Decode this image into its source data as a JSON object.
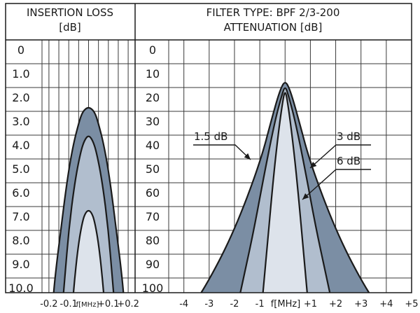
{
  "chart_data": [
    {
      "type": "area",
      "title": "INSERTION LOSS",
      "subtitle": "[dB]",
      "xlabel": "f[MHz]",
      "ylim": [
        0,
        10.5
      ],
      "y_ticks": [
        "0",
        "1.0",
        "2.0",
        "3.0",
        "4.0",
        "5.0",
        "6.0",
        "7.0",
        "8.0",
        "9.0",
        "10.0"
      ],
      "y_tick_values": [
        0,
        1,
        2,
        3,
        4,
        5,
        6,
        7,
        8,
        9,
        10
      ],
      "x_ticks": [
        "-0.2",
        "-0.1",
        "+0.1",
        "+0.2"
      ],
      "x_tick_values": [
        -0.2,
        -0.1,
        0.1,
        0.2
      ],
      "xlim": [
        -0.235,
        0.235
      ],
      "series": [
        {
          "fill": "#7b8ea4",
          "x": [
            -0.185,
            -0.17,
            -0.14,
            -0.11,
            -0.08,
            -0.05,
            -0.03,
            0.0,
            0.03,
            0.05,
            0.08,
            0.11,
            0.14,
            0.17,
            0.185
          ],
          "y": [
            10.5,
            9.0,
            7.0,
            5.0,
            3.5,
            2.5,
            2.0,
            1.8,
            2.0,
            2.5,
            3.5,
            5.0,
            7.0,
            9.0,
            10.5
          ]
        },
        {
          "fill": "#b1bece",
          "x": [
            -0.135,
            -0.12,
            -0.1,
            -0.07,
            -0.04,
            -0.02,
            0.0,
            0.02,
            0.04,
            0.07,
            0.1,
            0.12,
            0.135
          ],
          "y": [
            10.5,
            9.0,
            7.0,
            5.0,
            3.7,
            3.2,
            3.0,
            3.2,
            3.7,
            5.0,
            7.0,
            9.0,
            10.5
          ]
        },
        {
          "fill": "#dde3eb",
          "x": [
            -0.085,
            -0.07,
            -0.05,
            -0.03,
            -0.015,
            0.0,
            0.015,
            0.03,
            0.05,
            0.07,
            0.085
          ],
          "y": [
            10.5,
            9.0,
            7.5,
            6.6,
            6.25,
            6.15,
            6.25,
            6.6,
            7.5,
            9.0,
            10.5
          ]
        }
      ]
    },
    {
      "type": "area",
      "title": "FILTER TYPE: BPF 2/3-200",
      "subtitle": "ATTENUATION [dB]",
      "xlabel": "f[MHz]",
      "ylim": [
        0,
        105
      ],
      "y_ticks": [
        "0",
        "10",
        "20",
        "30",
        "40",
        "50",
        "60",
        "70",
        "80",
        "90",
        "100"
      ],
      "y_tick_values": [
        0,
        10,
        20,
        30,
        40,
        50,
        60,
        70,
        80,
        90,
        100
      ],
      "x_ticks": [
        "-4",
        "-3",
        "-2",
        "-1",
        "+1",
        "+2",
        "+3",
        "+4",
        "+5"
      ],
      "x_tick_values": [
        -4,
        -3,
        -2,
        -1,
        1,
        2,
        3,
        4,
        5
      ],
      "xlim": [
        -4.6,
        5.0
      ],
      "series": [
        {
          "name": "1.5 dB",
          "fill": "#7b8ea4",
          "x": [
            -3.85,
            -3.0,
            -2.0,
            -1.0,
            -0.5,
            -0.2,
            0.0,
            0.2,
            0.5,
            1.0,
            2.0,
            3.0,
            3.85
          ],
          "y": [
            105,
            91,
            70,
            42,
            22,
            11,
            7,
            11,
            22,
            42,
            70,
            91,
            105
          ]
        },
        {
          "name": "3 dB",
          "fill": "#b1bece",
          "x": [
            -1.95,
            -1.6,
            -1.2,
            -0.8,
            -0.4,
            -0.15,
            0.0,
            0.15,
            0.4,
            0.8,
            1.2,
            1.6,
            1.95
          ],
          "y": [
            105,
            88,
            68,
            45,
            24,
            14,
            9,
            14,
            24,
            45,
            68,
            88,
            105
          ]
        },
        {
          "name": "6 dB",
          "fill": "#dde3eb",
          "x": [
            -0.95,
            -0.75,
            -0.5,
            -0.3,
            -0.1,
            0.0,
            0.1,
            0.3,
            0.5,
            0.75,
            0.95
          ],
          "y": [
            105,
            82,
            52,
            32,
            16,
            11,
            16,
            32,
            52,
            82,
            105
          ]
        }
      ],
      "annotations": [
        "1.5 dB",
        "3 dB",
        "6 dB"
      ]
    }
  ]
}
